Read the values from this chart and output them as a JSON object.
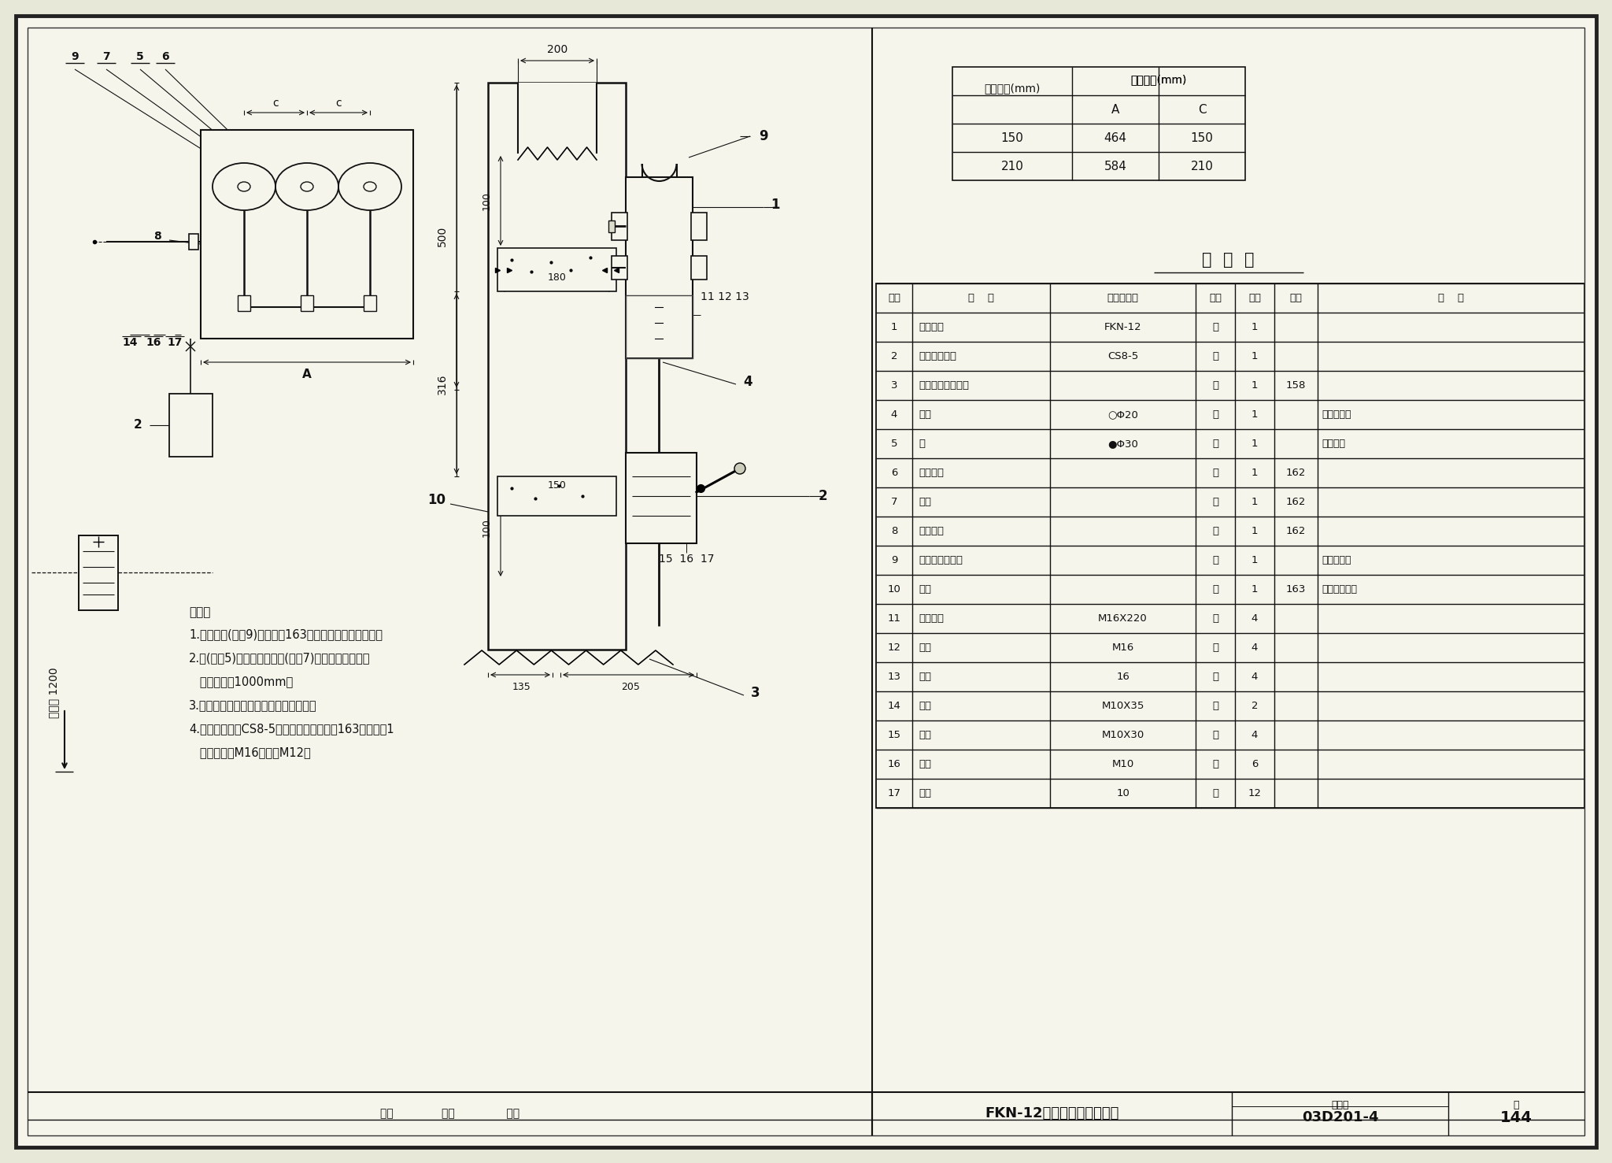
{
  "bg_color": "#e8e8d8",
  "paper_color": "#f5f5ec",
  "title_text": "FKN-12负荷开关在墙上安装",
  "atlas_no": "03D201-4",
  "page_no": "144",
  "dim_table_header1": "相中心距(mm)",
  "dim_table_header2": "安装尺寸(mm)",
  "dim_table_col_A": "A",
  "dim_table_col_C": "C",
  "dim_table_rows": [
    [
      150,
      464,
      150
    ],
    [
      210,
      584,
      210
    ]
  ],
  "mingxi_title": "明  细  表",
  "table_headers": [
    "序号",
    "名    称",
    "型号及规格",
    "单位",
    "数量",
    "页次",
    "备    注"
  ],
  "table_rows": [
    [
      "1",
      "负荷开关",
      "FKN-12",
      "台",
      "1",
      "",
      ""
    ],
    [
      "2",
      "手力操动机构",
      "CS8-5",
      "台",
      "1",
      "",
      ""
    ],
    [
      "3",
      "操动机构安装支架",
      "",
      "个",
      "1",
      "158",
      ""
    ],
    [
      "4",
      "拉杆",
      "○Φ20",
      "根",
      "1",
      "",
      "长度由工程"
    ],
    [
      "5",
      "轴",
      "●Φ30",
      "根",
      "1",
      "",
      "设计决定"
    ],
    [
      "6",
      "轴连接套",
      "",
      "根",
      "1",
      "162",
      ""
    ],
    [
      "7",
      "轴承",
      "",
      "根",
      "1",
      "162",
      ""
    ],
    [
      "8",
      "轴承支架",
      "",
      "根",
      "1",
      "162",
      ""
    ],
    [
      "9",
      "轴臂及弯形拐臂",
      "",
      "付",
      "1",
      "",
      "弯形拐臂随"
    ],
    [
      "10",
      "螺杆",
      "",
      "个",
      "1",
      "163",
      "开关成套供应"
    ],
    [
      "11",
      "开尾螺栋",
      "M16X220",
      "个",
      "4",
      "",
      ""
    ],
    [
      "12",
      "螺母",
      "M16",
      "个",
      "4",
      "",
      ""
    ],
    [
      "13",
      "垫圈",
      "16",
      "个",
      "4",
      "",
      ""
    ],
    [
      "14",
      "螺栋",
      "M10X35",
      "个",
      "2",
      "",
      ""
    ],
    [
      "15",
      "螺栋",
      "M10X30",
      "个",
      "4",
      "",
      ""
    ],
    [
      "16",
      "螺母",
      "M10",
      "个",
      "6",
      "",
      ""
    ],
    [
      "17",
      "垫圈",
      "10",
      "个",
      "12",
      "",
      ""
    ]
  ],
  "notes_title": "说明：",
  "notes": [
    "1.弯形拐臂(零件9)也可用第163页上的直叉形接头代替。",
    "2.轴(零件5)延长需增加轴承(零件7)时，两个轴承间的",
    "   距离不超过1000mm。",
    "3.操动机构也可安装在负荷开关的左侧。",
    "4.负荷开关配用CS8-5手动操动机构上时，163页上零件1",
    "   的螺纹直径M16应改为M12。"
  ],
  "scale_text": "安裃图 1200"
}
